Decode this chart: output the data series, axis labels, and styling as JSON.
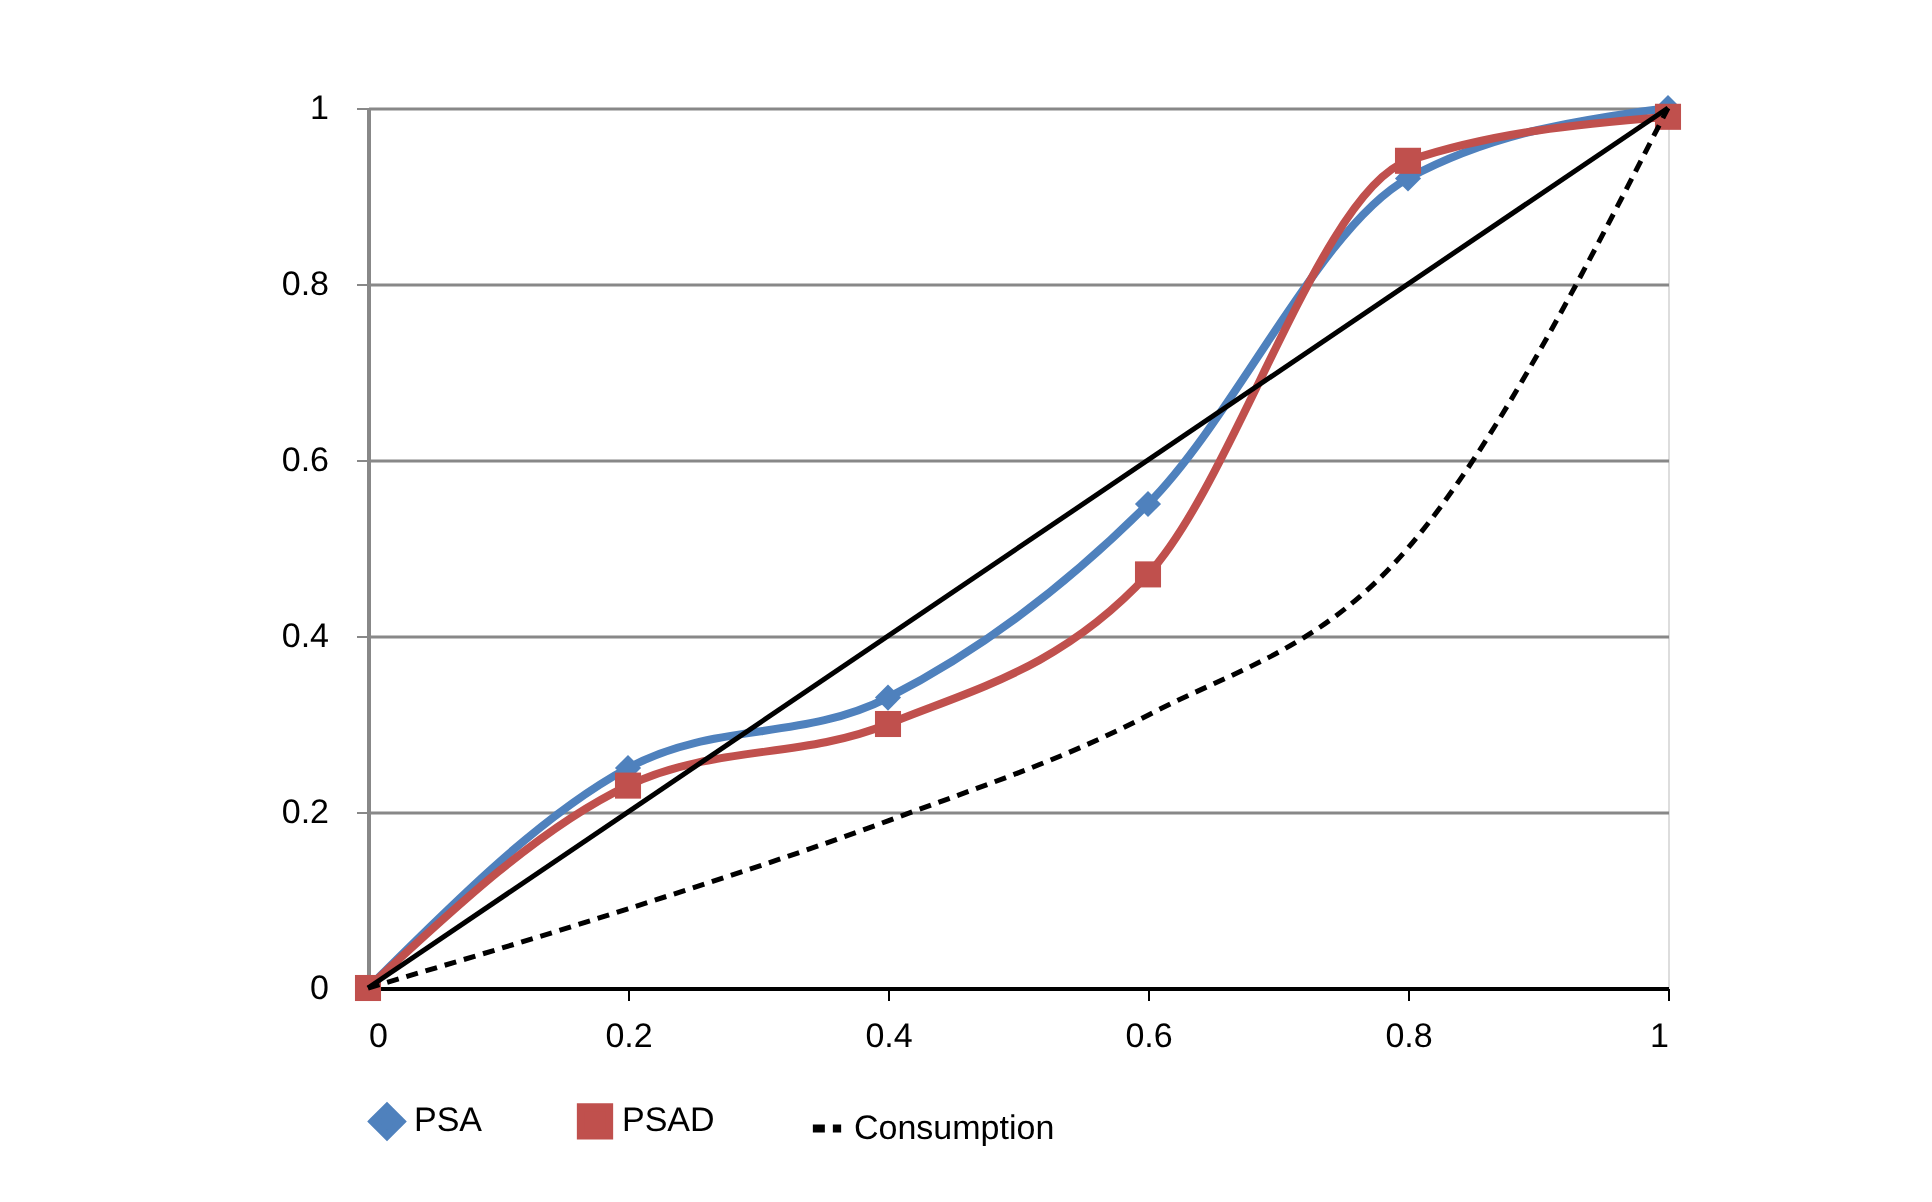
{
  "chart_data": {
    "type": "line",
    "xlim": [
      0,
      1
    ],
    "xticks": [
      0,
      0.2,
      0.4,
      0.6,
      0.8,
      1
    ],
    "ylim": [
      0,
      1
    ],
    "yticks": [
      0,
      0.2,
      0.4,
      0.6,
      0.8,
      1
    ],
    "grid": "y",
    "legend": "bottom",
    "series": [
      {
        "name": "PSA",
        "color": "#4f81bd",
        "marker": "diamond",
        "line_style": "solid",
        "x": [
          0,
          0.2,
          0.4,
          0.6,
          0.8,
          1
        ],
        "values": [
          0,
          0.25,
          0.33,
          0.55,
          0.92,
          1
        ]
      },
      {
        "name": "PSAD",
        "color": "#c0504d",
        "marker": "square",
        "line_style": "solid",
        "x": [
          0,
          0.2,
          0.4,
          0.6,
          0.8,
          1
        ],
        "values": [
          0,
          0.23,
          0.3,
          0.47,
          0.94,
          0.99
        ]
      },
      {
        "name": "Consumption",
        "color": "#000000",
        "marker": "none",
        "line_style": "dashed",
        "x": [
          0,
          0.2,
          0.4,
          0.6,
          0.8,
          1
        ],
        "values": [
          0,
          0.09,
          0.19,
          0.31,
          0.5,
          1
        ]
      },
      {
        "color": "#000000",
        "line_style": "solid",
        "x": [
          0,
          1
        ],
        "values": [
          0,
          1
        ]
      }
    ]
  }
}
